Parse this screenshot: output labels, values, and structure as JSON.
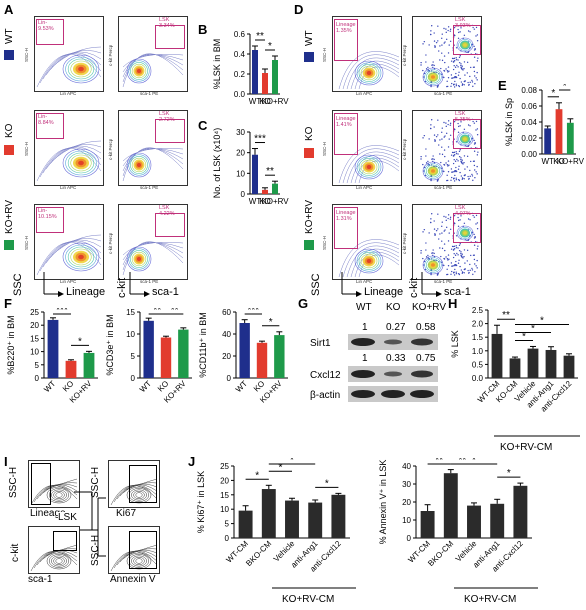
{
  "panel_letters": {
    "A": "A",
    "B": "B",
    "C": "C",
    "D": "D",
    "E": "E",
    "F": "F",
    "G": "G",
    "H": "H",
    "I": "I",
    "J": "J"
  },
  "colors": {
    "wt": "#1f2f8c",
    "ko": "#e23b2e",
    "korv": "#1e9a4a",
    "gate": "#c0307a"
  },
  "group_labels": {
    "wt": "WT",
    "ko": "KO",
    "korv": "KO+RV"
  },
  "flow_A": {
    "gates_left": [
      "Lin-\n9.53%",
      "Lin-\n8.84%",
      "Lin-\n10.15%"
    ],
    "gates_right": [
      "LSK\n3.34%",
      "LSK\n2.72%",
      "LSK\n4.22%"
    ],
    "x_left": "Lin APC",
    "x_right": "sca-1 PE",
    "y_left": "SSC-H",
    "y_right": "c-kit Percp"
  },
  "flow_D": {
    "gates_left": [
      "Lineage\n1.35%",
      "Lineage\n1.41%",
      "Lineage\n1.31%"
    ],
    "gates_right": [
      "LSK\n3.93%",
      "LSK\n5.35%",
      "LSK\n4.07%"
    ],
    "x_left": "Lin APC",
    "x_right": "sca-1 PE",
    "y_left": "SSC-H",
    "y_right": "c-kit Percp"
  },
  "axis_arrows": {
    "ssc": "SSC",
    "lineage": "Lineage",
    "ckit": "c-kit",
    "sca1": "sca-1"
  },
  "western": {
    "columns": [
      "WT",
      "KO",
      "KO+RV"
    ],
    "rows": [
      {
        "name": "Sirt1",
        "values": [
          "1",
          "0.27",
          "0.58"
        ]
      },
      {
        "name": "Cxcl12",
        "values": [
          "1",
          "0.33",
          "0.75"
        ]
      },
      {
        "name": "β-actin",
        "values": [
          "",
          "",
          ""
        ]
      }
    ]
  },
  "schematic_I": {
    "ssc_h": "SSC-H",
    "lineage": "Lineage",
    "ki67": "Ki67",
    "lsk": "LSK",
    "ckit": "c-kit",
    "sca1": "sca-1",
    "annexin": "Annexin V"
  },
  "treat_group_label": "KO+RV-CM",
  "chart_data": [
    {
      "id": "B",
      "type": "bar",
      "categories": [
        "WT",
        "KO",
        "KO+RV"
      ],
      "values": [
        0.44,
        0.21,
        0.34
      ],
      "errors": [
        0.04,
        0.04,
        0.04
      ],
      "ylabel": "%LSK in BM",
      "ylim": [
        0,
        0.6
      ],
      "yticks": [
        0.0,
        0.2,
        0.4,
        0.6
      ],
      "ytick_labels": [
        "0.0",
        "0.2",
        "0.4",
        "0.6"
      ],
      "significance": [
        {
          "from": 0,
          "to": 1,
          "label": "**"
        },
        {
          "from": 1,
          "to": 2,
          "label": "*"
        }
      ]
    },
    {
      "id": "C",
      "type": "bar",
      "categories": [
        "WT",
        "KO",
        "KO+RV"
      ],
      "values": [
        19,
        2,
        5
      ],
      "errors": [
        3,
        1,
        1.2
      ],
      "ylabel": "No. of LSK (x10⁴)",
      "ylim": [
        0,
        30
      ],
      "yticks": [
        0,
        10,
        20,
        30
      ],
      "ytick_labels": [
        "0",
        "10",
        "20",
        "30"
      ],
      "significance": [
        {
          "from": 0,
          "to": 1,
          "label": "***"
        },
        {
          "from": 1,
          "to": 2,
          "label": "**"
        }
      ]
    },
    {
      "id": "E",
      "type": "bar",
      "categories": [
        "WT",
        "KO",
        "KO+RV"
      ],
      "values": [
        0.032,
        0.056,
        0.039
      ],
      "errors": [
        0.003,
        0.008,
        0.005
      ],
      "ylabel": "%LSK in Sp",
      "ylim": [
        0,
        0.08
      ],
      "yticks": [
        0,
        0.02,
        0.04,
        0.06,
        0.08
      ],
      "ytick_labels": [
        "0.00",
        "0.02",
        "0.04",
        "0.06",
        "0.08"
      ],
      "significance": [
        {
          "from": 0,
          "to": 1,
          "label": "*"
        },
        {
          "from": 1,
          "to": 2,
          "label": "*"
        }
      ]
    },
    {
      "id": "F1",
      "type": "bar",
      "categories": [
        "WT",
        "KO",
        "KO+RV"
      ],
      "values": [
        22,
        6.5,
        9.5
      ],
      "errors": [
        0.8,
        0.4,
        0.6
      ],
      "ylabel": "%B220⁺ in BM",
      "ylim": [
        0,
        25
      ],
      "yticks": [
        0,
        5,
        10,
        15,
        20,
        25
      ],
      "ytick_labels": [
        "0",
        "5",
        "10",
        "15",
        "20",
        "25"
      ],
      "significance": [
        {
          "from": 0,
          "to": 1,
          "label": "***"
        },
        {
          "from": 1,
          "to": 2,
          "label": "*"
        }
      ]
    },
    {
      "id": "F2",
      "type": "bar",
      "categories": [
        "WT",
        "KO",
        "KO+RV"
      ],
      "values": [
        13,
        9.2,
        11
      ],
      "errors": [
        0.6,
        0.3,
        0.4
      ],
      "ylabel": "%CD3e⁺ in BM",
      "ylim": [
        0,
        15
      ],
      "yticks": [
        0,
        5,
        10,
        15
      ],
      "ytick_labels": [
        "0",
        "5",
        "10",
        "15"
      ],
      "significance": [
        {
          "from": 0,
          "to": 1,
          "label": "**"
        },
        {
          "from": 1,
          "to": 2,
          "label": "**"
        }
      ]
    },
    {
      "id": "F3",
      "type": "bar",
      "categories": [
        "WT",
        "KO",
        "KO+RV"
      ],
      "values": [
        50,
        32,
        39
      ],
      "errors": [
        3,
        1.5,
        3
      ],
      "ylabel": "%CD11b⁺ in BM",
      "ylim": [
        0,
        60
      ],
      "yticks": [
        0,
        20,
        40,
        60
      ],
      "ytick_labels": [
        "0",
        "20",
        "40",
        "60"
      ],
      "significance": [
        {
          "from": 0,
          "to": 1,
          "label": "***"
        },
        {
          "from": 1,
          "to": 2,
          "label": "*"
        }
      ]
    },
    {
      "id": "H",
      "type": "bar",
      "categories": [
        "WT-CM",
        "KO-CM",
        "Vehicle",
        "anti-Ang1",
        "anti-Cxcl12"
      ],
      "values": [
        1.62,
        0.72,
        1.08,
        1.03,
        0.82
      ],
      "errors": [
        0.32,
        0.05,
        0.08,
        0.12,
        0.07
      ],
      "ylabel": "% LSK",
      "ylim": [
        0,
        2.5
      ],
      "yticks": [
        0,
        0.5,
        1.0,
        1.5,
        2.0,
        2.5
      ],
      "ytick_labels": [
        "0.0",
        "0.5",
        "1.0",
        "1.5",
        "2.0",
        "2.5"
      ],
      "significance": [
        {
          "from": 0,
          "to": 1,
          "label": "**"
        },
        {
          "from": 1,
          "to": 2,
          "label": "*"
        },
        {
          "from": 1,
          "to": 3,
          "label": "*"
        },
        {
          "from": 1,
          "to": 4,
          "label": "*"
        }
      ]
    },
    {
      "id": "J1",
      "type": "bar",
      "categories": [
        "WT-CM",
        "BKO-CM",
        "Vehicle",
        "anti-Ang1",
        "anti-Cxcl12"
      ],
      "values": [
        9.5,
        17,
        13,
        12.3,
        15
      ],
      "errors": [
        1.7,
        1.3,
        0.8,
        0.9,
        0.5
      ],
      "ylabel": "% Ki67⁺ in LSK",
      "ylim": [
        0,
        25
      ],
      "yticks": [
        0,
        5,
        10,
        15,
        20,
        25
      ],
      "ytick_labels": [
        "0",
        "5",
        "10",
        "15",
        "20",
        "25"
      ],
      "significance": [
        {
          "from": 0,
          "to": 1,
          "label": "*"
        },
        {
          "from": 1,
          "to": 2,
          "label": "*"
        },
        {
          "from": 1,
          "to": 3,
          "label": "*"
        },
        {
          "from": 3,
          "to": 4,
          "label": "*"
        }
      ]
    },
    {
      "id": "J2",
      "type": "bar",
      "categories": [
        "WT-CM",
        "BKO-CM",
        "Vehicle",
        "anti-Ang1",
        "anti-Cxcl12"
      ],
      "values": [
        15,
        36,
        18,
        19,
        29
      ],
      "errors": [
        3.5,
        2,
        1.5,
        2.5,
        1.5
      ],
      "ylabel": "% Annexin V⁺ in LSK",
      "ylim": [
        0,
        40
      ],
      "yticks": [
        0,
        10,
        20,
        30,
        40
      ],
      "ytick_labels": [
        "0",
        "10",
        "20",
        "30",
        "40"
      ],
      "significance": [
        {
          "from": 0,
          "to": 1,
          "label": "**"
        },
        {
          "from": 1,
          "to": 2,
          "label": "**"
        },
        {
          "from": 1,
          "to": 3,
          "label": "*"
        },
        {
          "from": 3,
          "to": 4,
          "label": "*"
        }
      ]
    }
  ]
}
